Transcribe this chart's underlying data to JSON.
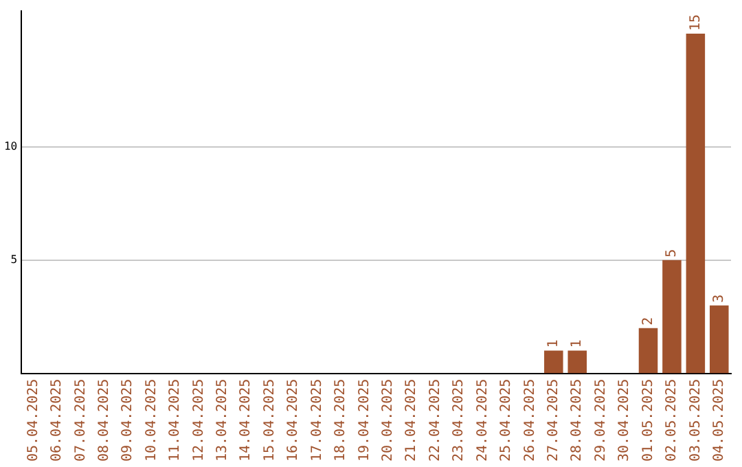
{
  "chart_data": {
    "type": "bar",
    "categories": [
      "05.04.2025",
      "06.04.2025",
      "07.04.2025",
      "08.04.2025",
      "09.04.2025",
      "10.04.2025",
      "11.04.2025",
      "12.04.2025",
      "13.04.2025",
      "14.04.2025",
      "15.04.2025",
      "16.04.2025",
      "17.04.2025",
      "18.04.2025",
      "19.04.2025",
      "20.04.2025",
      "21.04.2025",
      "22.04.2025",
      "23.04.2025",
      "24.04.2025",
      "25.04.2025",
      "26.04.2025",
      "27.04.2025",
      "28.04.2025",
      "29.04.2025",
      "30.04.2025",
      "01.05.2025",
      "02.05.2025",
      "03.05.2025",
      "04.05.2025"
    ],
    "values": [
      0,
      0,
      0,
      0,
      0,
      0,
      0,
      0,
      0,
      0,
      0,
      0,
      0,
      0,
      0,
      0,
      0,
      0,
      0,
      0,
      0,
      0,
      1,
      1,
      0,
      0,
      2,
      5,
      15,
      3
    ],
    "value_labels": [
      null,
      null,
      null,
      null,
      null,
      null,
      null,
      null,
      null,
      null,
      null,
      null,
      null,
      null,
      null,
      null,
      null,
      null,
      null,
      null,
      null,
      null,
      "1",
      "1",
      null,
      null,
      "2",
      "5",
      "15",
      "3"
    ],
    "color": "#a0522d",
    "ylim": [
      0,
      16
    ],
    "yticks": [
      5,
      10
    ],
    "grid": "y",
    "legend": false
  }
}
